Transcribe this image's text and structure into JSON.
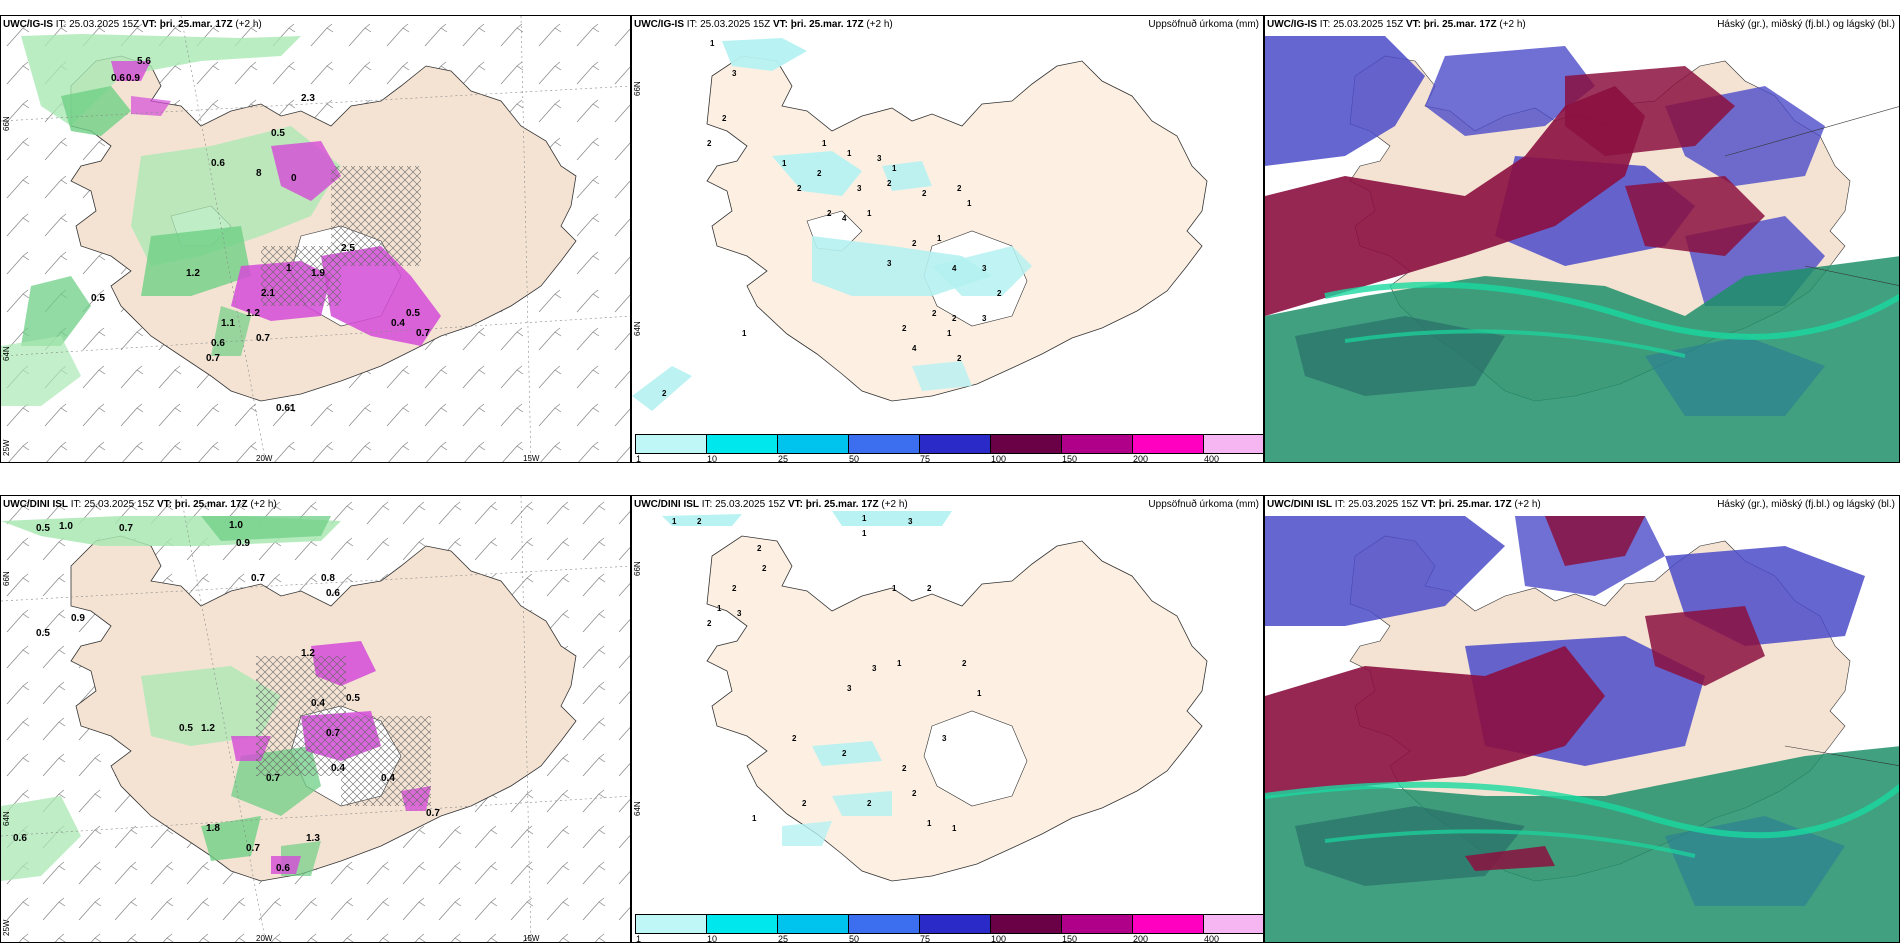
{
  "panels": {
    "p1": {
      "model": "UWC/IG-IS",
      "it": "IT: 25.03.2025 15Z",
      "vt_label": "VT:",
      "vt": "þri. 25.mar. 17Z",
      "offset": "(+2 h)"
    },
    "p2": {
      "model": "UWC/IG-IS",
      "it": "IT: 25.03.2025 15Z",
      "vt_label": "VT:",
      "vt": "þri. 25.mar. 17Z",
      "offset": "(+2 h)",
      "right_title": "Uppsöfnuð úrkoma (mm)"
    },
    "p3": {
      "model": "UWC/IG-IS",
      "it": "IT: 25.03.2025 15Z",
      "vt_label": "VT:",
      "vt": "þri. 25.mar. 17Z",
      "offset": "(+2 h)",
      "right_title": "Háský (gr.), miðský (fj.bl.) og lágský (bl.)"
    },
    "p4": {
      "model": "UWC/DINI ISL",
      "it": "IT: 25.03.2025 15Z",
      "vt_label": "VT:",
      "vt": "þri. 25.mar. 17Z",
      "offset": "(+2 h)"
    },
    "p5": {
      "model": "UWC/DINI ISL",
      "it": "IT: 25.03.2025 15Z",
      "vt_label": "VT:",
      "vt": "þri. 25.mar. 17Z",
      "offset": "(+2 h)",
      "right_title": "Uppsöfnuð úrkoma (mm)"
    },
    "p6": {
      "model": "UWC/DINI ISL",
      "it": "IT: 25.03.2025 15Z",
      "vt_label": "VT:",
      "vt": "þri. 25.mar. 17Z",
      "offset": "(+2 h)",
      "right_title": "Háský (gr.), miðský (fj.bl.) og lágský (bl.)"
    }
  },
  "axes": {
    "lat_66": "66N",
    "lat_64": "64N",
    "lon_25": "25W",
    "lon_20": "20W",
    "lon_15": "15W"
  },
  "colorbar": {
    "colors": [
      "#bff7f7",
      "#00e8ee",
      "#00c3ee",
      "#3b6ff0",
      "#2a2ac8",
      "#6a0046",
      "#b0008a",
      "#ff00c0",
      "#f6b6f2"
    ],
    "labels": [
      "1",
      "10",
      "25",
      "50",
      "75",
      "100",
      "150",
      "200",
      "400"
    ]
  },
  "colors": {
    "land": "#f4e3d3",
    "high_cloud": "#1f8f6a",
    "mid_cloud": "#4b4bc9",
    "low_cloud": "#8b1040",
    "precip_light": "#b5f1f1",
    "precip_mod": "#d44bd8"
  },
  "precip_labels_top": [
    "1",
    "3",
    "2",
    "2",
    "1",
    "1",
    "1",
    "3",
    "1",
    "2",
    "2",
    "2",
    "3",
    "2",
    "2",
    "2",
    "4",
    "1",
    "2",
    "1",
    "1",
    "3",
    "4",
    "3",
    "2",
    "2",
    "2",
    "3",
    "1",
    "2",
    "1",
    "4",
    "2",
    "2"
  ],
  "precip_labels_bottom": [
    "1",
    "2",
    "1",
    "3",
    "2",
    "1",
    "2",
    "2",
    "1",
    "3",
    "2",
    "1",
    "2",
    "3",
    "1",
    "2",
    "3",
    "1",
    "3",
    "2",
    "2",
    "2",
    "2",
    "2",
    "1",
    "2",
    "1",
    "1"
  ],
  "intensity_labels_top": [
    "5.6",
    "0.6",
    "0.9",
    "2.3",
    "0.5",
    "0.6",
    "8",
    "0",
    "2.5",
    "1.2",
    "1",
    "2.1",
    "0.5",
    "1.2",
    "1.1",
    "0.6",
    "0.7",
    "0.7",
    "1.9",
    "0.5",
    "0.4",
    "0.7",
    "0.61"
  ],
  "intensity_labels_bottom": [
    "0.5",
    "1.0",
    "0.7",
    "1.0",
    "0.9",
    "0.7",
    "0.8",
    "0.6",
    "0.9",
    "1.2",
    "0.5",
    "0.4",
    "0.5",
    "1.2",
    "0.5",
    "0.7",
    "0.4",
    "0.4",
    "0.7",
    "0.6",
    "1.8",
    "0.7",
    "1.3",
    "0.6",
    "0.7"
  ]
}
